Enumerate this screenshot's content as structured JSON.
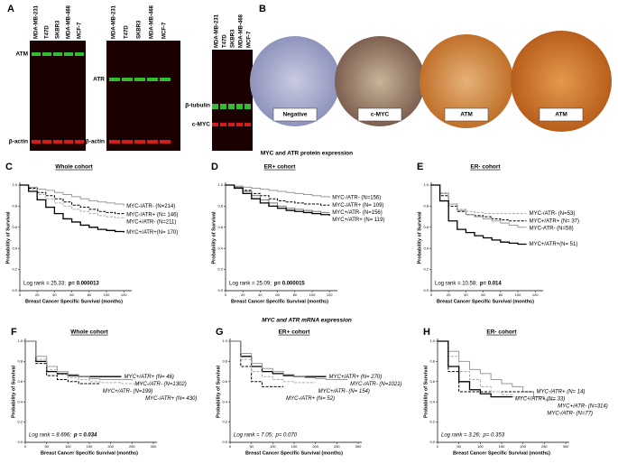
{
  "figure": {
    "panel_a": "A",
    "panel_b": "B",
    "blots": [
      {
        "lanes": [
          "MDA-MB-231",
          "T47D",
          "SKBR3",
          "MDA-MB-468",
          "MCF-7"
        ],
        "bands": [
          "ATM",
          "β-actin"
        ]
      },
      {
        "lanes": [
          "MDA-MB-231",
          "T47D",
          "SKBR3",
          "MDA-MB-468",
          "MCF-7"
        ],
        "bands": [
          "ATR",
          "β-actin"
        ]
      },
      {
        "lanes": [
          "MDA-MB-231",
          "T47D",
          "SKBR3",
          "MDA-MB-468",
          "MCF-7"
        ],
        "bands": [
          "β-tubulin",
          "c-MYC"
        ]
      }
    ],
    "ihc": [
      "Negative",
      "c-MYC",
      "ATM",
      "ATM"
    ],
    "protein_caption": "MYC and ATR protein expression",
    "mrna_caption": "MYC and ATR mRNA expression"
  },
  "chart_data": [
    {
      "type": "step",
      "panel": "C",
      "title": "Whole cohort",
      "xlabel": "Breast Cancer Specific Survival (months)",
      "ylabel": "Probability of Survival",
      "x": [
        0,
        10,
        20,
        30,
        40,
        50,
        60,
        70,
        80,
        90,
        100,
        110,
        120
      ],
      "xlim": [
        0,
        125
      ],
      "xticks": [
        0,
        20,
        40,
        60,
        80,
        100,
        120
      ],
      "ylim": [
        0,
        1
      ],
      "yticks": [
        {
          "value": 0,
          "label": "0.0"
        },
        {
          "value": 0.2,
          "label": "0.2"
        },
        {
          "value": 0.4,
          "label": "0.4"
        },
        {
          "value": 0.6,
          "label": "0.6"
        },
        {
          "value": 0.8,
          "label": "0.8"
        },
        {
          "value": 1,
          "label": "1.0"
        }
      ],
      "log_rank": "Log rank = 25.33;",
      "p_value": "p= 0.000013",
      "p_bold": true,
      "italic_labels": false,
      "series": [
        {
          "name": "MYC-/ATR- (N=214)",
          "color": "#9a9a9a",
          "dashed": false,
          "values": [
            1,
            0.98,
            0.96,
            0.95,
            0.93,
            0.91,
            0.89,
            0.87,
            0.85,
            0.84,
            0.83,
            0.82,
            0.8
          ]
        },
        {
          "name": "MYC-/ATR+ (N= 146)",
          "color": "#000000",
          "dashed": true,
          "values": [
            1,
            0.97,
            0.93,
            0.9,
            0.87,
            0.84,
            0.81,
            0.79,
            0.77,
            0.75,
            0.74,
            0.73,
            0.72
          ]
        },
        {
          "name": "MYC+/ATR- (N=211)",
          "color": "#aaaaaa",
          "dashed": true,
          "values": [
            1,
            0.96,
            0.91,
            0.87,
            0.83,
            0.8,
            0.77,
            0.75,
            0.73,
            0.71,
            0.7,
            0.69,
            0.68
          ]
        },
        {
          "name": "MYC+/ATR+(N= 170)",
          "color": "#000000",
          "dashed": false,
          "values": [
            1,
            0.94,
            0.86,
            0.79,
            0.73,
            0.68,
            0.65,
            0.62,
            0.6,
            0.58,
            0.57,
            0.56,
            0.55
          ]
        }
      ]
    },
    {
      "type": "step",
      "panel": "D",
      "title": "ER+ cohort",
      "xlabel": "Breast Cancer Specific Survival (months)",
      "ylabel": "Probability of Survival",
      "x": [
        0,
        10,
        20,
        30,
        40,
        50,
        60,
        70,
        80,
        90,
        100,
        110,
        120
      ],
      "xlim": [
        0,
        125
      ],
      "xticks": [
        0,
        20,
        40,
        60,
        80,
        100,
        120
      ],
      "ylim": [
        0,
        1
      ],
      "yticks": [
        {
          "value": 0,
          "label": "0.0"
        },
        {
          "value": 0.2,
          "label": "0.2"
        },
        {
          "value": 0.4,
          "label": "0.4"
        },
        {
          "value": 0.6,
          "label": "0.6"
        },
        {
          "value": 0.8,
          "label": "0.8"
        },
        {
          "value": 1,
          "label": "1.0"
        }
      ],
      "log_rank": "Log rank = 25.09;",
      "p_value": "p= 0.000015",
      "p_bold": true,
      "italic_labels": false,
      "series": [
        {
          "name": "MYC-/ATR- (N=156)",
          "color": "#9a9a9a",
          "dashed": false,
          "values": [
            1,
            0.99,
            0.98,
            0.97,
            0.96,
            0.95,
            0.94,
            0.93,
            0.92,
            0.91,
            0.9,
            0.89,
            0.88
          ]
        },
        {
          "name": "MYC-/ATR+ (N= 109)",
          "color": "#000000",
          "dashed": true,
          "values": [
            1,
            0.98,
            0.95,
            0.92,
            0.9,
            0.87,
            0.85,
            0.84,
            0.83,
            0.82,
            0.82,
            0.81,
            0.81
          ]
        },
        {
          "name": "MYC+/ATR- (N=156)",
          "color": "#777777",
          "dashed": false,
          "values": [
            1,
            0.98,
            0.94,
            0.9,
            0.86,
            0.83,
            0.8,
            0.78,
            0.77,
            0.76,
            0.75,
            0.74,
            0.74
          ]
        },
        {
          "name": "MYC+/ATR+ (N= 119)",
          "color": "#000000",
          "dashed": false,
          "values": [
            1,
            0.97,
            0.92,
            0.87,
            0.83,
            0.8,
            0.78,
            0.76,
            0.75,
            0.74,
            0.73,
            0.72,
            0.71
          ]
        }
      ]
    },
    {
      "type": "step",
      "panel": "E",
      "title": "ER- cohort",
      "xlabel": "Breast Cancer Specific Survival (months)",
      "ylabel": "Probability of Survival",
      "x": [
        0,
        10,
        20,
        30,
        40,
        50,
        60,
        70,
        80,
        90,
        100,
        110,
        120
      ],
      "xlim": [
        0,
        125
      ],
      "xticks": [
        0,
        20,
        40,
        60,
        80,
        100,
        120
      ],
      "ylim": [
        0,
        1
      ],
      "yticks": [
        {
          "value": 0,
          "label": "0.0"
        },
        {
          "value": 0.2,
          "label": "0.2"
        },
        {
          "value": 0.4,
          "label": "0.4"
        },
        {
          "value": 0.6,
          "label": "0.6"
        },
        {
          "value": 0.8,
          "label": "0.8"
        },
        {
          "value": 1,
          "label": "1.0"
        }
      ],
      "log_rank": "Log rank = 10.58;",
      "p_value": "p= 0.014",
      "p_bold": true,
      "italic_labels": false,
      "series": [
        {
          "name": "MYC-/ATR- (N=53)",
          "color": "#aaaaaa",
          "dashed": true,
          "values": [
            1,
            0.93,
            0.82,
            0.77,
            0.75,
            0.74,
            0.73,
            0.73,
            0.73,
            0.73,
            0.73,
            0.73,
            null
          ]
        },
        {
          "name": "MYC+/ATR+ (N= 37)",
          "color": "#000000",
          "dashed": true,
          "values": [
            1,
            0.9,
            0.8,
            0.75,
            0.72,
            0.71,
            0.7,
            0.68,
            0.67,
            0.66,
            0.66,
            0.66,
            null
          ]
        },
        {
          "name": "MYC-ATR- (N=58)",
          "color": "#9a9a9a",
          "dashed": false,
          "values": [
            1,
            0.92,
            0.82,
            0.76,
            0.72,
            0.7,
            0.68,
            0.66,
            0.64,
            0.62,
            0.6,
            0.6,
            null
          ]
        },
        {
          "name": "MYC+/ATR+(N= 51)",
          "color": "#000000",
          "dashed": false,
          "values": [
            1,
            0.85,
            0.66,
            0.58,
            0.55,
            0.52,
            0.5,
            0.48,
            0.46,
            0.45,
            0.44,
            0.44,
            null
          ]
        }
      ]
    },
    {
      "type": "step",
      "panel": "F",
      "title": "Whole cohort",
      "xlabel": "Breast Cancer Specific Survival (months)",
      "ylabel": "Probability of Survival",
      "x": [
        0,
        25,
        50,
        75,
        100,
        125,
        150,
        175,
        200,
        225,
        250,
        275,
        300
      ],
      "xlim": [
        0,
        300
      ],
      "xticks": [
        0,
        50,
        100,
        150,
        200,
        250,
        300
      ],
      "ylim": [
        0,
        1
      ],
      "yticks": [
        {
          "value": 0,
          "label": "0.0"
        },
        {
          "value": 0.2,
          "label": "0.2"
        },
        {
          "value": 0.4,
          "label": "0.4"
        },
        {
          "value": 0.6,
          "label": "0.6"
        },
        {
          "value": 0.8,
          "label": "0.8"
        },
        {
          "value": 1,
          "label": "1.0"
        }
      ],
      "log_rank": "Log rank = 8.696;",
      "p_value": "p = 0.034",
      "p_bold": true,
      "italic_labels": true,
      "series": [
        {
          "name": "MYC+/ATR+ (N= 46)",
          "color": "#000000",
          "dashed": false,
          "values": [
            1,
            0.8,
            0.7,
            0.68,
            0.66,
            0.65,
            0.65,
            0.65,
            0.65,
            0.65,
            null,
            null,
            null
          ]
        },
        {
          "name": "MYC-/ATR- (N=1302)",
          "color": "#9a9a9a",
          "dashed": false,
          "values": [
            1,
            0.85,
            0.75,
            0.7,
            0.67,
            0.65,
            0.63,
            0.62,
            0.62,
            0.62,
            0.61,
            null,
            null
          ]
        },
        {
          "name": "MYC+/ATR- (N=199)",
          "color": "#000000",
          "dashed": true,
          "values": [
            1,
            0.78,
            0.66,
            0.62,
            0.6,
            0.58,
            0.58,
            0.58,
            null,
            null,
            null,
            null,
            null
          ]
        },
        {
          "name": "MYC-/ATR+ (N= 430)",
          "color": "#aaaaaa",
          "dashed": true,
          "values": [
            1,
            0.82,
            0.72,
            0.67,
            0.64,
            0.62,
            0.6,
            0.59,
            0.59,
            0.58,
            0.58,
            0.58,
            null
          ]
        }
      ]
    },
    {
      "type": "step",
      "panel": "G",
      "title": "ER+ cohort",
      "xlabel": "Breast Cancer Specific Survival (months)",
      "ylabel": "Probability of Survival",
      "x": [
        0,
        25,
        50,
        75,
        100,
        125,
        150,
        175,
        200,
        225,
        250,
        275,
        300
      ],
      "xlim": [
        0,
        300
      ],
      "xticks": [
        0,
        50,
        100,
        150,
        200,
        250,
        300
      ],
      "ylim": [
        0,
        1
      ],
      "yticks": [
        {
          "value": 0,
          "label": "0.0"
        },
        {
          "value": 0.2,
          "label": "0.2"
        },
        {
          "value": 0.4,
          "label": "0.4"
        },
        {
          "value": 0.6,
          "label": "0.6"
        },
        {
          "value": 0.8,
          "label": "0.8"
        },
        {
          "value": 1,
          "label": "1.0"
        }
      ],
      "log_rank": "Log rank = 7.05;",
      "p_value": "p= 0.070",
      "p_bold": false,
      "italic_labels": true,
      "series": [
        {
          "name": "MYC+/ATR+ (N= 270)",
          "color": "#000000",
          "dashed": false,
          "values": [
            1,
            0.85,
            0.75,
            0.7,
            0.68,
            0.66,
            0.65,
            0.65,
            0.65,
            0.65,
            null,
            null,
            null
          ]
        },
        {
          "name": "MYC-/ATR- (N=1021)",
          "color": "#9a9a9a",
          "dashed": false,
          "values": [
            1,
            0.88,
            0.78,
            0.73,
            0.7,
            0.67,
            0.65,
            0.64,
            0.63,
            0.62,
            0.62,
            0.62,
            null
          ]
        },
        {
          "name": "MYC-/ATR+ (N= 52)",
          "color": "#000000",
          "dashed": true,
          "values": [
            1,
            0.75,
            0.6,
            0.55,
            0.55,
            0.55,
            null,
            null,
            null,
            null,
            null,
            null,
            null
          ]
        },
        {
          "name": "MYC+/ATR- (N= 154)",
          "color": "#aaaaaa",
          "dashed": true,
          "values": [
            1,
            0.82,
            0.7,
            0.65,
            0.62,
            0.6,
            0.59,
            0.59,
            0.59,
            null,
            null,
            null,
            null
          ]
        }
      ]
    },
    {
      "type": "step",
      "panel": "H",
      "title": "ER- cohort",
      "xlabel": "Breast Cancer Specific Survival (months)",
      "ylabel": "Probability of Survival",
      "x": [
        0,
        25,
        50,
        75,
        100,
        125,
        150,
        175,
        200,
        225,
        250,
        275,
        300
      ],
      "xlim": [
        0,
        300
      ],
      "xticks": [
        0,
        50,
        100,
        150,
        200,
        250,
        300
      ],
      "ylim": [
        0,
        1
      ],
      "yticks": [
        {
          "value": 0,
          "label": "0.0"
        },
        {
          "value": 0.2,
          "label": "0.2"
        },
        {
          "value": 0.4,
          "label": "0.4"
        },
        {
          "value": 0.6,
          "label": "0.6"
        },
        {
          "value": 0.8,
          "label": "0.8"
        },
        {
          "value": 1,
          "label": "1.0"
        }
      ],
      "log_rank": "Log rank = 3.26;",
      "p_value": "p= 0.353",
      "p_bold": false,
      "italic_labels": true,
      "series": [
        {
          "name": "MYC+/ATR- (N=314)",
          "color": "#9a9a9a",
          "dashed": false,
          "values": [
            1,
            0.9,
            0.8,
            0.72,
            0.68,
            0.62,
            0.58,
            0.55,
            0.5,
            0.45,
            0.42,
            0.42,
            null
          ]
        },
        {
          "name": "MYC-/ATR+ (N= 14)",
          "color": "#000000",
          "dashed": true,
          "values": [
            1,
            0.7,
            0.5,
            0.5,
            0.5,
            0.5,
            0.5,
            0.5,
            0.5,
            0.5,
            null,
            null,
            null
          ]
        },
        {
          "name": "MYC-/ATR- (N=77)",
          "color": "#aaaaaa",
          "dashed": true,
          "values": [
            1,
            0.85,
            0.7,
            0.62,
            0.55,
            0.5,
            0.47,
            0.45,
            0.45,
            0.45,
            0.42,
            null,
            null
          ]
        },
        {
          "name": "MYC+/ATR+ (N= 33)",
          "color": "#000000",
          "dashed": false,
          "values": [
            1,
            0.75,
            0.6,
            0.52,
            0.48,
            0.45,
            0.45,
            0.45,
            null,
            null,
            null,
            null,
            null
          ]
        }
      ]
    }
  ]
}
